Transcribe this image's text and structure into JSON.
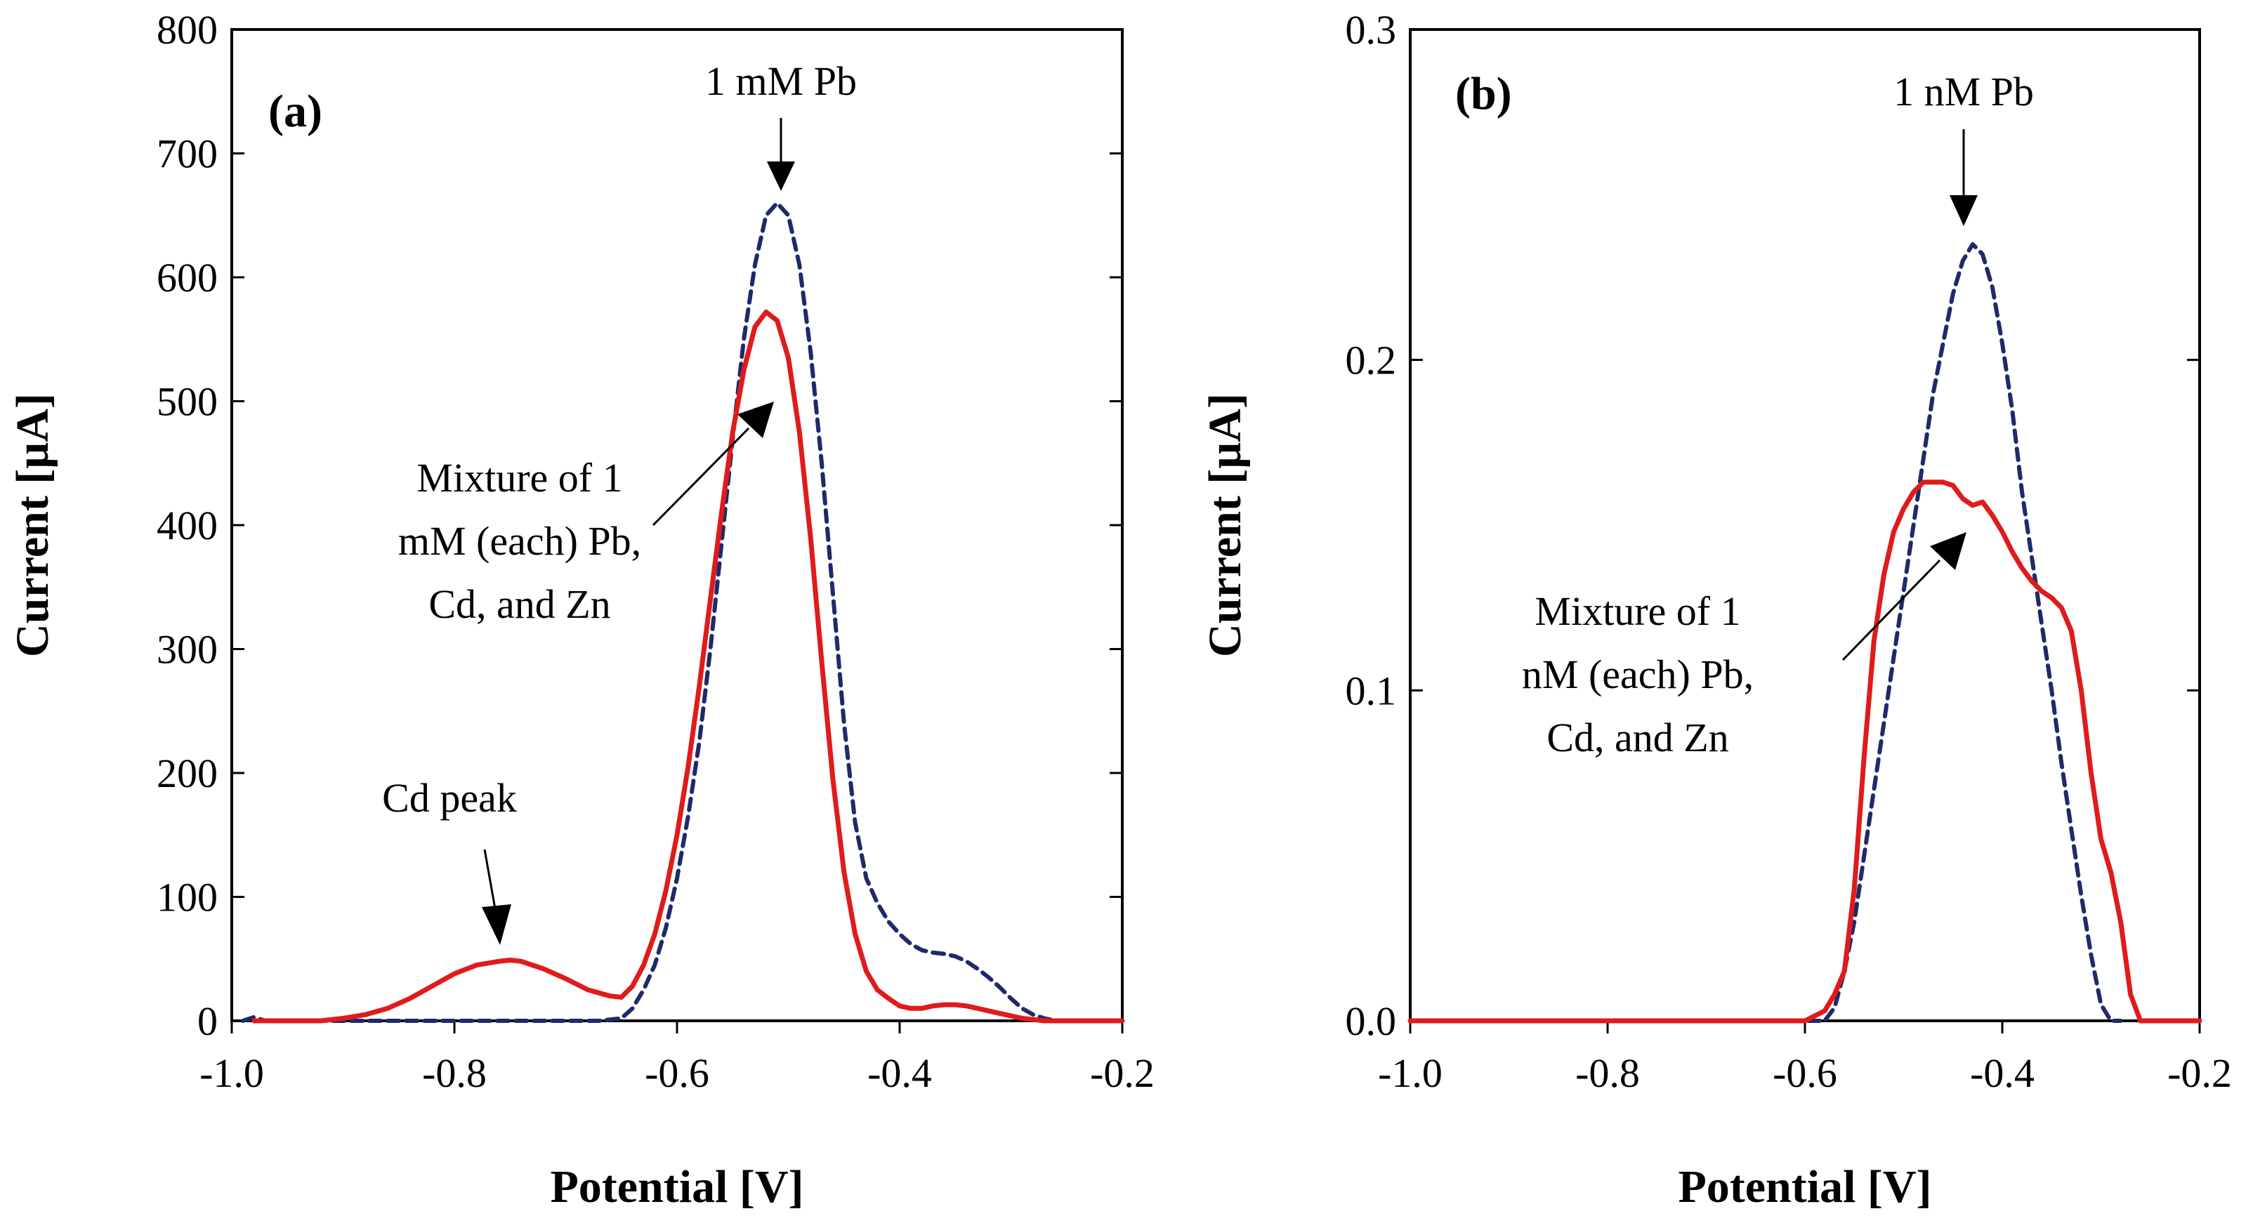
{
  "chart_data": [
    {
      "panel": "(a)",
      "type": "line",
      "xlabel": "Potential [V]",
      "ylabel": "Current [µA]",
      "xlim": [
        -1.0,
        -0.2
      ],
      "ylim": [
        0,
        800
      ],
      "xticks": [
        -1.0,
        -0.8,
        -0.6,
        -0.4,
        -0.2
      ],
      "xtick_labels": [
        "-1.0",
        "-0.8",
        "-0.6",
        "-0.4",
        "-0.2"
      ],
      "yticks": [
        0,
        100,
        200,
        300,
        400,
        500,
        600,
        700,
        800
      ],
      "ytick_labels": [
        "0",
        "100",
        "200",
        "300",
        "400",
        "500",
        "600",
        "700",
        "800"
      ],
      "series": [
        {
          "name": "1 mM Pb",
          "color": "#1f2a6b",
          "style": "dashed",
          "x": [
            -0.99,
            -0.98,
            -0.97,
            -0.95,
            -0.9,
            -0.8,
            -0.7,
            -0.67,
            -0.65,
            -0.64,
            -0.63,
            -0.62,
            -0.61,
            -0.6,
            -0.59,
            -0.58,
            -0.57,
            -0.56,
            -0.55,
            -0.54,
            -0.53,
            -0.52,
            -0.51,
            -0.5,
            -0.49,
            -0.48,
            -0.47,
            -0.46,
            -0.45,
            -0.44,
            -0.43,
            -0.42,
            -0.41,
            -0.4,
            -0.39,
            -0.38,
            -0.37,
            -0.36,
            -0.35,
            -0.34,
            -0.33,
            -0.32,
            -0.31,
            -0.3,
            -0.29,
            -0.28,
            -0.27,
            -0.26,
            -0.25,
            -0.24
          ],
          "y": [
            0,
            3,
            0,
            0,
            0,
            0,
            0,
            0,
            2,
            10,
            25,
            45,
            75,
            115,
            165,
            225,
            300,
            385,
            470,
            550,
            610,
            650,
            660,
            650,
            610,
            540,
            450,
            345,
            240,
            160,
            115,
            95,
            80,
            70,
            62,
            57,
            55,
            54,
            52,
            48,
            42,
            35,
            27,
            18,
            10,
            5,
            2,
            0,
            0,
            0
          ]
        },
        {
          "name": "Mixture of 1 mM (each) Pb, Cd, and Zn",
          "color": "#e01b1b",
          "style": "solid",
          "x": [
            -0.98,
            -0.95,
            -0.92,
            -0.9,
            -0.88,
            -0.86,
            -0.84,
            -0.82,
            -0.8,
            -0.78,
            -0.76,
            -0.75,
            -0.74,
            -0.72,
            -0.7,
            -0.68,
            -0.66,
            -0.65,
            -0.64,
            -0.63,
            -0.62,
            -0.61,
            -0.6,
            -0.59,
            -0.58,
            -0.57,
            -0.56,
            -0.55,
            -0.54,
            -0.53,
            -0.52,
            -0.51,
            -0.5,
            -0.49,
            -0.48,
            -0.47,
            -0.46,
            -0.45,
            -0.44,
            -0.43,
            -0.42,
            -0.41,
            -0.4,
            -0.39,
            -0.38,
            -0.37,
            -0.36,
            -0.35,
            -0.34,
            -0.33,
            -0.32,
            -0.31,
            -0.3,
            -0.29,
            -0.28,
            -0.27,
            -0.26,
            -0.25,
            -0.24,
            -0.22,
            -0.2
          ],
          "y": [
            0,
            0,
            0,
            2,
            5,
            10,
            18,
            28,
            38,
            45,
            48,
            49,
            48,
            42,
            34,
            25,
            20,
            19,
            28,
            45,
            70,
            105,
            150,
            205,
            270,
            340,
            410,
            475,
            525,
            560,
            572,
            565,
            535,
            475,
            390,
            290,
            195,
            120,
            70,
            40,
            25,
            18,
            12,
            10,
            10,
            12,
            13,
            13,
            12,
            10,
            8,
            6,
            4,
            2,
            1,
            0,
            0,
            0,
            0,
            0,
            0
          ]
        }
      ],
      "annotations": [
        {
          "text": "1 mM Pb"
        },
        {
          "lines": [
            "Mixture of 1",
            "mM (each) Pb,",
            "Cd, and Zn"
          ]
        },
        {
          "text": "Cd peak"
        }
      ]
    },
    {
      "panel": "(b)",
      "type": "line",
      "xlabel": "Potential [V]",
      "ylabel": "Current [µA]",
      "xlim": [
        -1.0,
        -0.2
      ],
      "ylim": [
        0,
        0.3
      ],
      "xticks": [
        -1.0,
        -0.8,
        -0.6,
        -0.4,
        -0.2
      ],
      "xtick_labels": [
        "-1.0",
        "-0.8",
        "-0.6",
        "-0.4",
        "-0.2"
      ],
      "yticks": [
        0,
        0.1,
        0.2,
        0.3
      ],
      "ytick_labels": [
        "0.0",
        "0.1",
        "0.2",
        "0.3"
      ],
      "series": [
        {
          "name": "1 nM Pb",
          "color": "#1f2a6b",
          "style": "dashed",
          "x": [
            -0.8,
            -0.6,
            -0.58,
            -0.57,
            -0.56,
            -0.55,
            -0.54,
            -0.53,
            -0.52,
            -0.51,
            -0.5,
            -0.49,
            -0.48,
            -0.47,
            -0.46,
            -0.45,
            -0.44,
            -0.43,
            -0.42,
            -0.41,
            -0.4,
            -0.39,
            -0.38,
            -0.37,
            -0.36,
            -0.35,
            -0.34,
            -0.33,
            -0.32,
            -0.31,
            -0.3,
            -0.29,
            -0.28
          ],
          "y": [
            0,
            0,
            0,
            0.004,
            0.015,
            0.03,
            0.05,
            0.07,
            0.09,
            0.11,
            0.13,
            0.15,
            0.17,
            0.19,
            0.205,
            0.22,
            0.23,
            0.235,
            0.232,
            0.222,
            0.205,
            0.185,
            0.16,
            0.14,
            0.12,
            0.1,
            0.078,
            0.058,
            0.038,
            0.02,
            0.005,
            0,
            0
          ]
        },
        {
          "name": "Mixture of 1 nM (each) Pb, Cd, and Zn",
          "color": "#e01b1b",
          "style": "solid",
          "x": [
            -1.0,
            -0.8,
            -0.6,
            -0.58,
            -0.57,
            -0.56,
            -0.55,
            -0.54,
            -0.53,
            -0.52,
            -0.51,
            -0.5,
            -0.49,
            -0.48,
            -0.47,
            -0.46,
            -0.45,
            -0.44,
            -0.43,
            -0.42,
            -0.41,
            -0.4,
            -0.39,
            -0.38,
            -0.37,
            -0.36,
            -0.35,
            -0.34,
            -0.33,
            -0.32,
            -0.31,
            -0.3,
            -0.29,
            -0.28,
            -0.27,
            -0.26,
            -0.24,
            -0.2
          ],
          "y": [
            0,
            0,
            0,
            0.003,
            0.008,
            0.015,
            0.04,
            0.08,
            0.115,
            0.135,
            0.148,
            0.155,
            0.16,
            0.163,
            0.163,
            0.163,
            0.162,
            0.158,
            0.156,
            0.157,
            0.153,
            0.148,
            0.142,
            0.137,
            0.133,
            0.13,
            0.128,
            0.125,
            0.118,
            0.1,
            0.075,
            0.055,
            0.045,
            0.03,
            0.008,
            0,
            0,
            0
          ]
        }
      ],
      "annotations": [
        {
          "text": "1 nM Pb"
        },
        {
          "lines": [
            "Mixture of 1",
            "nM (each) Pb,",
            "Cd, and Zn"
          ]
        }
      ]
    }
  ]
}
